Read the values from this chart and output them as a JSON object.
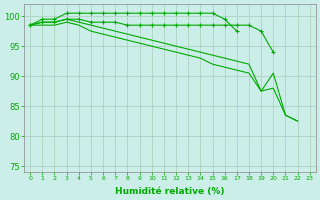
{
  "x": [
    0,
    1,
    2,
    3,
    4,
    5,
    6,
    7,
    8,
    9,
    10,
    11,
    12,
    13,
    14,
    15,
    16,
    17,
    18,
    19,
    20,
    21,
    22,
    23
  ],
  "line1": [
    98.5,
    99.5,
    99.5,
    100.5,
    100.5,
    100.5,
    100.5,
    100.5,
    100.5,
    100.5,
    100.5,
    100.5,
    100.5,
    100.5,
    100.5,
    100.5,
    99.5,
    97.5,
    null,
    null,
    null,
    null,
    null,
    null
  ],
  "line2": [
    98.5,
    99.0,
    99.0,
    99.5,
    99.5,
    99.0,
    99.0,
    99.0,
    98.5,
    98.5,
    98.5,
    98.5,
    98.5,
    98.5,
    98.5,
    98.5,
    98.5,
    98.5,
    98.5,
    97.5,
    94.0,
    null,
    null,
    null
  ],
  "line3": [
    98.5,
    99.0,
    99.0,
    99.5,
    99.0,
    98.5,
    98.0,
    97.5,
    97.0,
    96.5,
    96.0,
    95.5,
    95.0,
    94.5,
    94.0,
    93.5,
    93.0,
    92.5,
    92.0,
    87.5,
    90.5,
    83.5,
    82.5,
    null
  ],
  "line4": [
    98.5,
    98.5,
    98.5,
    99.0,
    98.5,
    97.5,
    97.0,
    96.5,
    96.0,
    95.5,
    95.0,
    94.5,
    94.0,
    93.5,
    93.0,
    92.0,
    91.5,
    91.0,
    90.5,
    87.5,
    88.0,
    83.5,
    82.5,
    null
  ],
  "line_color": "#00aa00",
  "bg_color": "#cceee8",
  "grid_color": "#aaccbb",
  "xlabel": "Humidité relative (%)",
  "xlabel_color": "#00aa00",
  "ylim": [
    74,
    102
  ],
  "xlim": [
    -0.5,
    23.5
  ],
  "yticks": [
    75,
    80,
    85,
    90,
    95,
    100
  ],
  "xticks": [
    0,
    1,
    2,
    3,
    4,
    5,
    6,
    7,
    8,
    9,
    10,
    11,
    12,
    13,
    14,
    15,
    16,
    17,
    18,
    19,
    20,
    21,
    22,
    23
  ]
}
